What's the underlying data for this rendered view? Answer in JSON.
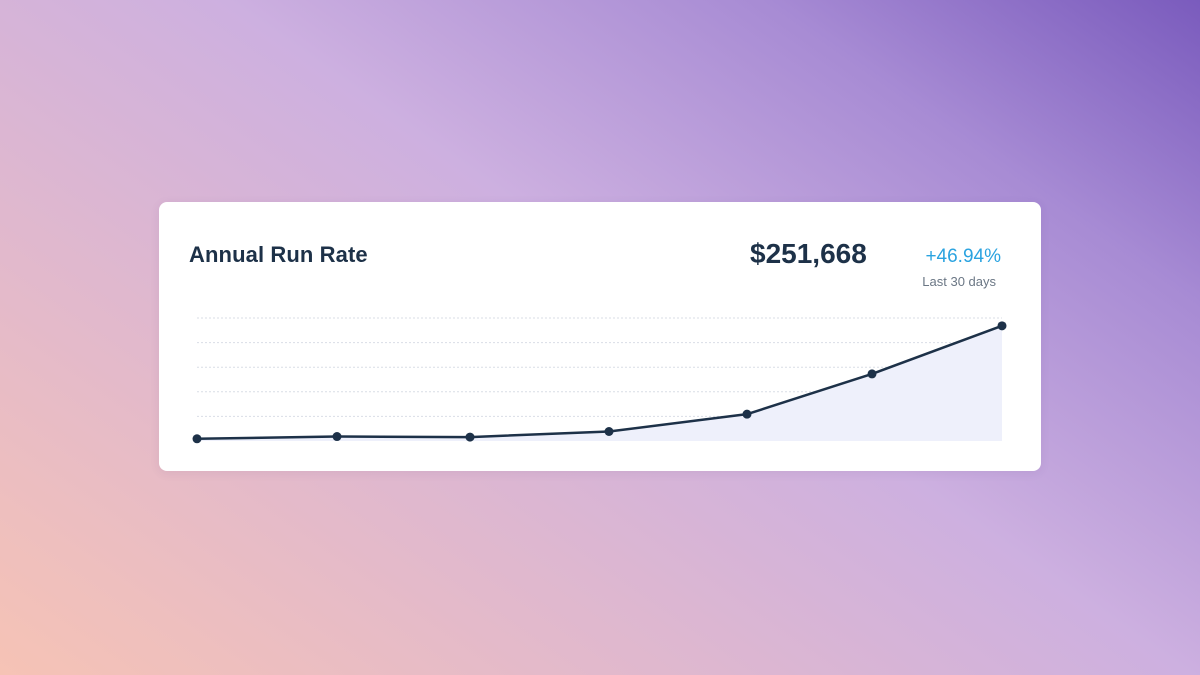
{
  "card": {
    "title": "Annual Run Rate",
    "value": "$251,668",
    "change": "+46.94%",
    "period": "Last 30 days"
  },
  "colors": {
    "line": "#1d3148",
    "area": "#eef0fb",
    "change": "#2aa3e0",
    "grid": "#d9dde6"
  },
  "chart_data": {
    "type": "line",
    "x": [
      1,
      2,
      3,
      4,
      5,
      6,
      7
    ],
    "values": [
      2,
      4,
      3.5,
      8.5,
      24,
      60,
      103
    ],
    "ylim": [
      0,
      110
    ],
    "grid": true,
    "gridlines": 5
  }
}
